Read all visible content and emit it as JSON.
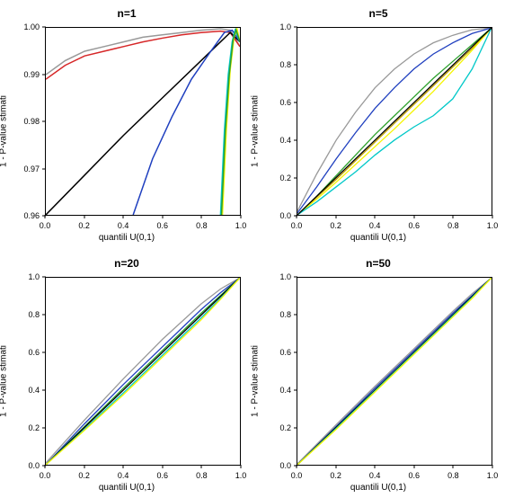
{
  "layout": {
    "rows": 2,
    "cols": 2
  },
  "panels": [
    {
      "title": "n=1",
      "xlabel": "quantili U(0,1)",
      "ylabel": "1 - P-value stimati",
      "xlim": [
        0.0,
        1.0
      ],
      "ylim": [
        0.96,
        1.0
      ],
      "xticks": [
        0.0,
        0.2,
        0.4,
        0.6,
        0.8,
        1.0
      ],
      "yticks": [
        0.96,
        0.97,
        0.98,
        0.99,
        1.0
      ],
      "title_fontsize": 12,
      "label_fontsize": 10,
      "tick_fontsize": 9,
      "line_width": 1.5,
      "series": [
        {
          "color": "#999999",
          "data": [
            [
              0.0,
              0.99
            ],
            [
              0.1,
              0.993
            ],
            [
              0.2,
              0.995
            ],
            [
              0.3,
              0.996
            ],
            [
              0.4,
              0.997
            ],
            [
              0.5,
              0.998
            ],
            [
              0.6,
              0.9985
            ],
            [
              0.7,
              0.999
            ],
            [
              0.8,
              0.9995
            ],
            [
              0.9,
              0.9998
            ],
            [
              0.95,
              0.9995
            ],
            [
              1.0,
              0.996
            ]
          ]
        },
        {
          "color": "#d62728",
          "data": [
            [
              0.0,
              0.989
            ],
            [
              0.1,
              0.992
            ],
            [
              0.2,
              0.994
            ],
            [
              0.3,
              0.995
            ],
            [
              0.4,
              0.996
            ],
            [
              0.5,
              0.997
            ],
            [
              0.6,
              0.9978
            ],
            [
              0.7,
              0.9985
            ],
            [
              0.8,
              0.999
            ],
            [
              0.9,
              0.9993
            ],
            [
              0.95,
              0.999
            ],
            [
              1.0,
              0.996
            ]
          ]
        },
        {
          "color": "#000000",
          "data": [
            [
              0.0,
              0.96
            ],
            [
              0.2,
              0.9685
            ],
            [
              0.4,
              0.977
            ],
            [
              0.6,
              0.985
            ],
            [
              0.8,
              0.993
            ],
            [
              0.9,
              0.997
            ],
            [
              0.95,
              0.999
            ],
            [
              1.0,
              0.997
            ]
          ]
        },
        {
          "color": "#1f3fbf",
          "data": [
            [
              0.45,
              0.96
            ],
            [
              0.55,
              0.972
            ],
            [
              0.65,
              0.981
            ],
            [
              0.75,
              0.989
            ],
            [
              0.85,
              0.995
            ],
            [
              0.92,
              0.999
            ],
            [
              0.96,
              0.9995
            ],
            [
              1.0,
              0.997
            ]
          ]
        },
        {
          "color": "#00c8c8",
          "data": [
            [
              0.9,
              0.96
            ],
            [
              0.92,
              0.978
            ],
            [
              0.94,
              0.99
            ],
            [
              0.96,
              0.997
            ],
            [
              0.975,
              0.9995
            ],
            [
              1.0,
              0.997
            ]
          ]
        },
        {
          "color": "#f5f500",
          "data": [
            [
              0.91,
              0.96
            ],
            [
              0.93,
              0.978
            ],
            [
              0.95,
              0.991
            ],
            [
              0.97,
              0.998
            ],
            [
              0.985,
              0.9998
            ],
            [
              1.0,
              0.997
            ]
          ]
        },
        {
          "color": "#2ca02c",
          "data": [
            [
              0.905,
              0.96
            ],
            [
              0.925,
              0.978
            ],
            [
              0.945,
              0.99
            ],
            [
              0.965,
              0.9975
            ],
            [
              0.98,
              0.9996
            ],
            [
              1.0,
              0.997
            ]
          ]
        }
      ]
    },
    {
      "title": "n=5",
      "xlabel": "quantili U(0,1)",
      "ylabel": "1 - P-value stimati",
      "xlim": [
        0.0,
        1.0
      ],
      "ylim": [
        0.0,
        1.0
      ],
      "xticks": [
        0.0,
        0.2,
        0.4,
        0.6,
        0.8,
        1.0
      ],
      "yticks": [
        0.0,
        0.2,
        0.4,
        0.6,
        0.8,
        1.0
      ],
      "title_fontsize": 12,
      "label_fontsize": 10,
      "tick_fontsize": 9,
      "line_width": 1.3,
      "series": [
        {
          "color": "#999999",
          "data": [
            [
              0.0,
              0.02
            ],
            [
              0.1,
              0.22
            ],
            [
              0.2,
              0.4
            ],
            [
              0.3,
              0.55
            ],
            [
              0.4,
              0.68
            ],
            [
              0.5,
              0.78
            ],
            [
              0.6,
              0.86
            ],
            [
              0.7,
              0.92
            ],
            [
              0.8,
              0.96
            ],
            [
              0.9,
              0.99
            ],
            [
              1.0,
              1.0
            ]
          ]
        },
        {
          "color": "#1f3fbf",
          "data": [
            [
              0.0,
              0.01
            ],
            [
              0.1,
              0.15
            ],
            [
              0.2,
              0.3
            ],
            [
              0.3,
              0.44
            ],
            [
              0.4,
              0.57
            ],
            [
              0.5,
              0.68
            ],
            [
              0.6,
              0.78
            ],
            [
              0.7,
              0.86
            ],
            [
              0.8,
              0.92
            ],
            [
              0.9,
              0.97
            ],
            [
              1.0,
              1.0
            ]
          ]
        },
        {
          "color": "#2ca02c",
          "data": [
            [
              0.0,
              0.0
            ],
            [
              0.1,
              0.1
            ],
            [
              0.2,
              0.21
            ],
            [
              0.3,
              0.32
            ],
            [
              0.4,
              0.43
            ],
            [
              0.5,
              0.53
            ],
            [
              0.6,
              0.63
            ],
            [
              0.7,
              0.73
            ],
            [
              0.8,
              0.82
            ],
            [
              0.9,
              0.91
            ],
            [
              1.0,
              1.0
            ]
          ]
        },
        {
          "color": "#c0a000",
          "data": [
            [
              0.0,
              0.0
            ],
            [
              0.1,
              0.095
            ],
            [
              0.2,
              0.19
            ],
            [
              0.3,
              0.29
            ],
            [
              0.4,
              0.39
            ],
            [
              0.5,
              0.49
            ],
            [
              0.6,
              0.59
            ],
            [
              0.7,
              0.69
            ],
            [
              0.8,
              0.79
            ],
            [
              0.9,
              0.89
            ],
            [
              1.0,
              1.0
            ]
          ]
        },
        {
          "color": "#f5f500",
          "data": [
            [
              0.0,
              0.0
            ],
            [
              0.1,
              0.085
            ],
            [
              0.2,
              0.175
            ],
            [
              0.3,
              0.27
            ],
            [
              0.4,
              0.365
            ],
            [
              0.5,
              0.46
            ],
            [
              0.6,
              0.56
            ],
            [
              0.7,
              0.66
            ],
            [
              0.8,
              0.77
            ],
            [
              0.9,
              0.88
            ],
            [
              1.0,
              1.0
            ]
          ]
        },
        {
          "color": "#00c8c8",
          "data": [
            [
              0.0,
              0.0
            ],
            [
              0.1,
              0.07
            ],
            [
              0.2,
              0.15
            ],
            [
              0.3,
              0.23
            ],
            [
              0.4,
              0.32
            ],
            [
              0.5,
              0.4
            ],
            [
              0.6,
              0.47
            ],
            [
              0.7,
              0.53
            ],
            [
              0.8,
              0.62
            ],
            [
              0.9,
              0.78
            ],
            [
              1.0,
              1.0
            ]
          ]
        },
        {
          "color": "#000000",
          "data": [
            [
              0.0,
              0.0
            ],
            [
              0.1,
              0.1
            ],
            [
              0.2,
              0.2
            ],
            [
              0.3,
              0.3
            ],
            [
              0.4,
              0.4
            ],
            [
              0.5,
              0.5
            ],
            [
              0.6,
              0.6
            ],
            [
              0.7,
              0.7
            ],
            [
              0.8,
              0.8
            ],
            [
              0.9,
              0.9
            ],
            [
              1.0,
              1.0
            ]
          ]
        }
      ]
    },
    {
      "title": "n=20",
      "xlabel": "quantili U(0,1)",
      "ylabel": "1 - P-value stimati",
      "xlim": [
        0.0,
        1.0
      ],
      "ylim": [
        0.0,
        1.0
      ],
      "xticks": [
        0.0,
        0.2,
        0.4,
        0.6,
        0.8,
        1.0
      ],
      "yticks": [
        0.0,
        0.2,
        0.4,
        0.6,
        0.8,
        1.0
      ],
      "title_fontsize": 12,
      "label_fontsize": 10,
      "tick_fontsize": 9,
      "line_width": 1.3,
      "series": [
        {
          "color": "#999999",
          "data": [
            [
              0.0,
              0.01
            ],
            [
              0.2,
              0.24
            ],
            [
              0.4,
              0.46
            ],
            [
              0.6,
              0.67
            ],
            [
              0.8,
              0.86
            ],
            [
              0.9,
              0.94
            ],
            [
              1.0,
              1.0
            ]
          ]
        },
        {
          "color": "#1f3fbf",
          "data": [
            [
              0.0,
              0.0
            ],
            [
              0.2,
              0.22
            ],
            [
              0.4,
              0.43
            ],
            [
              0.6,
              0.63
            ],
            [
              0.8,
              0.83
            ],
            [
              0.9,
              0.92
            ],
            [
              1.0,
              1.0
            ]
          ]
        },
        {
          "color": "#2ca02c",
          "data": [
            [
              0.0,
              0.0
            ],
            [
              0.2,
              0.205
            ],
            [
              0.4,
              0.41
            ],
            [
              0.6,
              0.61
            ],
            [
              0.8,
              0.81
            ],
            [
              0.9,
              0.905
            ],
            [
              1.0,
              1.0
            ]
          ]
        },
        {
          "color": "#000000",
          "data": [
            [
              0.0,
              0.0
            ],
            [
              0.2,
              0.2
            ],
            [
              0.4,
              0.4
            ],
            [
              0.6,
              0.6
            ],
            [
              0.8,
              0.8
            ],
            [
              0.9,
              0.9
            ],
            [
              1.0,
              1.0
            ]
          ]
        },
        {
          "color": "#00c8c8",
          "data": [
            [
              0.0,
              0.0
            ],
            [
              0.2,
              0.19
            ],
            [
              0.4,
              0.385
            ],
            [
              0.6,
              0.585
            ],
            [
              0.8,
              0.785
            ],
            [
              0.9,
              0.89
            ],
            [
              1.0,
              1.0
            ]
          ]
        },
        {
          "color": "#f5f500",
          "data": [
            [
              0.0,
              0.0
            ],
            [
              0.2,
              0.185
            ],
            [
              0.4,
              0.375
            ],
            [
              0.6,
              0.575
            ],
            [
              0.8,
              0.775
            ],
            [
              0.9,
              0.885
            ],
            [
              1.0,
              1.0
            ]
          ]
        }
      ]
    },
    {
      "title": "n=50",
      "xlabel": "quantili U(0,1)",
      "ylabel": "1 - P-value stimati",
      "xlim": [
        0.0,
        1.0
      ],
      "ylim": [
        0.0,
        1.0
      ],
      "xticks": [
        0.0,
        0.2,
        0.4,
        0.6,
        0.8,
        1.0
      ],
      "yticks": [
        0.0,
        0.2,
        0.4,
        0.6,
        0.8,
        1.0
      ],
      "title_fontsize": 12,
      "label_fontsize": 10,
      "tick_fontsize": 9,
      "line_width": 1.3,
      "series": [
        {
          "color": "#999999",
          "data": [
            [
              0.0,
              0.005
            ],
            [
              0.2,
              0.215
            ],
            [
              0.4,
              0.42
            ],
            [
              0.6,
              0.62
            ],
            [
              0.8,
              0.82
            ],
            [
              0.9,
              0.915
            ],
            [
              1.0,
              1.0
            ]
          ]
        },
        {
          "color": "#1f3fbf",
          "data": [
            [
              0.0,
              0.0
            ],
            [
              0.2,
              0.205
            ],
            [
              0.4,
              0.41
            ],
            [
              0.6,
              0.61
            ],
            [
              0.8,
              0.81
            ],
            [
              0.9,
              0.905
            ],
            [
              1.0,
              1.0
            ]
          ]
        },
        {
          "color": "#2ca02c",
          "data": [
            [
              0.0,
              0.0
            ],
            [
              0.2,
              0.2
            ],
            [
              0.4,
              0.4
            ],
            [
              0.6,
              0.6
            ],
            [
              0.8,
              0.8
            ],
            [
              0.9,
              0.9
            ],
            [
              1.0,
              1.0
            ]
          ]
        },
        {
          "color": "#000000",
          "data": [
            [
              0.0,
              0.0
            ],
            [
              0.2,
              0.2
            ],
            [
              0.4,
              0.4
            ],
            [
              0.6,
              0.6
            ],
            [
              0.8,
              0.8
            ],
            [
              0.9,
              0.9
            ],
            [
              1.0,
              1.0
            ]
          ]
        },
        {
          "color": "#00c8c8",
          "data": [
            [
              0.0,
              0.0
            ],
            [
              0.2,
              0.195
            ],
            [
              0.4,
              0.395
            ],
            [
              0.6,
              0.595
            ],
            [
              0.8,
              0.795
            ],
            [
              0.9,
              0.895
            ],
            [
              1.0,
              1.0
            ]
          ]
        },
        {
          "color": "#f5f500",
          "data": [
            [
              0.0,
              0.0
            ],
            [
              0.2,
              0.19
            ],
            [
              0.4,
              0.39
            ],
            [
              0.6,
              0.59
            ],
            [
              0.8,
              0.79
            ],
            [
              0.9,
              0.89
            ],
            [
              1.0,
              1.0
            ]
          ]
        }
      ]
    }
  ]
}
